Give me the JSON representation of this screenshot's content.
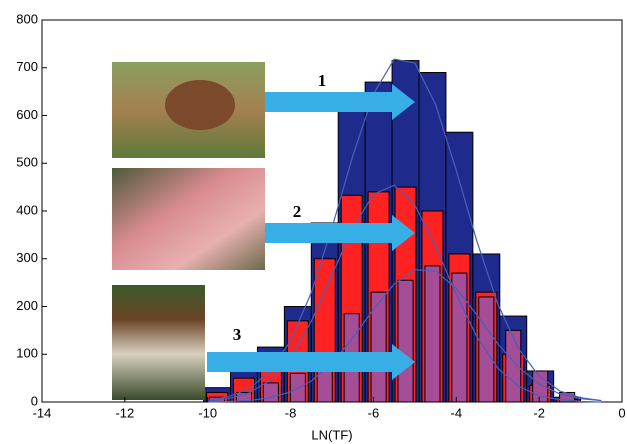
{
  "chart_data": {
    "type": "histogram",
    "x_label": "LN(TF)",
    "xlim": [
      -14,
      0
    ],
    "xticks": [
      -14,
      -12,
      -10,
      -8,
      -6,
      -4,
      -2,
      0
    ],
    "ylim": [
      0,
      800
    ],
    "yticks": [
      0,
      100,
      200,
      300,
      400,
      500,
      600,
      700,
      800
    ],
    "bins": [
      -10.1,
      -9.45,
      -8.8,
      -8.15,
      -7.5,
      -6.85,
      -6.2,
      -5.55,
      -4.9,
      -4.25,
      -3.6,
      -2.95,
      -2.3,
      -1.65,
      -1.0
    ],
    "series": [
      {
        "color": "#1f2b8c",
        "values": [
          30,
          80,
          115,
          200,
          375,
          620,
          670,
          715,
          690,
          565,
          310,
          180,
          65,
          10
        ]
      },
      {
        "color": "#ff2222",
        "values": [
          20,
          50,
          75,
          170,
          300,
          433,
          440,
          450,
          400,
          310,
          230,
          100,
          35,
          5
        ]
      },
      {
        "color": "#a64d98",
        "values": [
          10,
          20,
          40,
          60,
          65,
          185,
          230,
          255,
          285,
          270,
          220,
          150,
          65,
          20
        ]
      }
    ],
    "curve_x": [
      -10,
      -9.5,
      -9,
      -8.5,
      -8,
      -7.5,
      -7,
      -6.5,
      -6,
      -5.5,
      -5,
      -4.5,
      -4,
      -3.5,
      -3,
      -2.5,
      -2,
      -1.5,
      -1,
      -0.5
    ],
    "curves": [
      {
        "color": "#4a5fb8",
        "values": [
          4,
          11,
          28,
          64,
          128,
          229,
          365,
          515,
          645,
          718,
          710,
          623,
          485,
          336,
          206,
          112,
          54,
          23,
          9,
          3
        ]
      },
      {
        "color": "#4a5fb8",
        "values": [
          2,
          7,
          19,
          45,
          94,
          169,
          266,
          364,
          435,
          454,
          412,
          326,
          225,
          136,
          71,
          33,
          13,
          5,
          1,
          0
        ]
      },
      {
        "color": "#4a5fb8",
        "values": [
          0,
          1,
          3,
          9,
          21,
          44,
          81,
          134,
          194,
          247,
          277,
          274,
          238,
          182,
          122,
          73,
          38,
          17,
          7,
          3
        ]
      }
    ],
    "annotations": [
      "1",
      "2",
      "3"
    ]
  }
}
